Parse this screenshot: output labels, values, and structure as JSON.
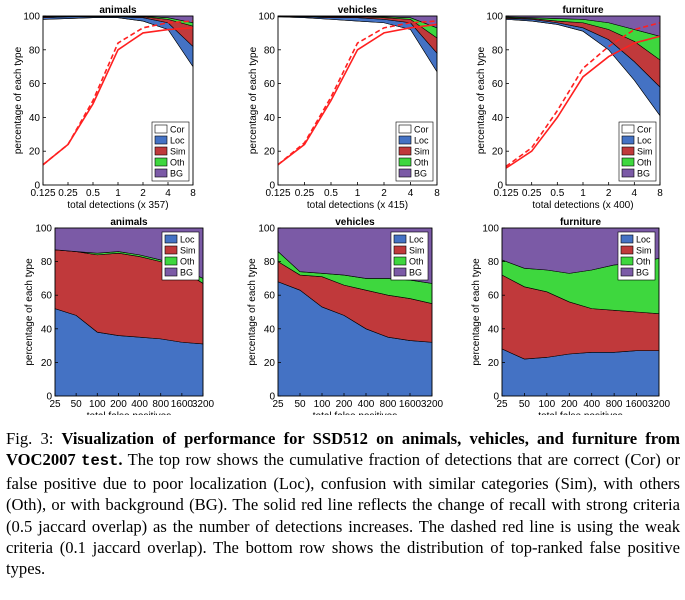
{
  "colors": {
    "cor": "#ffffff",
    "loc": "#4472c4",
    "sim": "#c0393b",
    "oth": "#3ed73e",
    "bg": "#7b5aa6",
    "recall": "#ff2020"
  },
  "legend": {
    "top": [
      "Cor",
      "Loc",
      "Sim",
      "Oth",
      "BG"
    ],
    "bottom": [
      "Loc",
      "Sim",
      "Oth",
      "BG"
    ]
  },
  "chart_data": [
    {
      "type": "area",
      "title": "animals",
      "ylabel": "percentage of each type",
      "xlabel": "total detections (x 357)",
      "x": [
        0.125,
        0.25,
        0.5,
        1,
        2,
        4,
        8
      ],
      "xticks": [
        "0.125",
        "0.25",
        "0.5",
        "1",
        "2",
        "4",
        "8"
      ],
      "yticks": [
        "0",
        "20",
        "40",
        "60",
        "80",
        "100"
      ],
      "ylim": [
        0,
        100
      ],
      "series": [
        {
          "name": "Cor",
          "cumulative": [
            98,
            98.5,
            99,
            99,
            97,
            92,
            70
          ]
        },
        {
          "name": "Loc",
          "cumulative": [
            99,
            99.5,
            99.5,
            99.5,
            99,
            96,
            82
          ]
        },
        {
          "name": "Sim",
          "cumulative": [
            99.5,
            99.8,
            99.8,
            99.8,
            99.5,
            98,
            94
          ]
        },
        {
          "name": "Oth",
          "cumulative": [
            99.8,
            99.9,
            99.9,
            99.9,
            99.8,
            99,
            96
          ]
        },
        {
          "name": "BG",
          "cumulative": [
            100,
            100,
            100,
            100,
            100,
            100,
            100
          ]
        }
      ],
      "recall_strong": [
        12,
        24,
        48,
        80,
        90,
        92,
        93
      ],
      "recall_weak": [
        12,
        24,
        50,
        84,
        93,
        96,
        97
      ]
    },
    {
      "type": "area",
      "title": "vehicles",
      "ylabel": "percentage of each type",
      "xlabel": "total detections (x 415)",
      "x": [
        0.125,
        0.25,
        0.5,
        1,
        2,
        4,
        8
      ],
      "xticks": [
        "0.125",
        "0.25",
        "0.5",
        "1",
        "2",
        "4",
        "8"
      ],
      "yticks": [
        "0",
        "20",
        "40",
        "60",
        "80",
        "100"
      ],
      "ylim": [
        0,
        100
      ],
      "series": [
        {
          "name": "Cor",
          "cumulative": [
            99.5,
            99,
            98,
            97,
            96,
            92,
            67
          ]
        },
        {
          "name": "Loc",
          "cumulative": [
            99.8,
            99.5,
            99,
            99,
            98,
            96,
            78
          ]
        },
        {
          "name": "Sim",
          "cumulative": [
            99.9,
            99.8,
            99.5,
            99.5,
            99,
            98,
            87
          ]
        },
        {
          "name": "Oth",
          "cumulative": [
            100,
            99.9,
            99.8,
            99.8,
            99.5,
            99,
            93
          ]
        },
        {
          "name": "BG",
          "cumulative": [
            100,
            100,
            100,
            100,
            100,
            100,
            100
          ]
        }
      ],
      "recall_strong": [
        12,
        24,
        50,
        80,
        90,
        93,
        95
      ],
      "recall_weak": [
        12,
        25,
        52,
        84,
        93,
        96,
        97
      ]
    },
    {
      "type": "area",
      "title": "furniture",
      "ylabel": "percentage of each type",
      "xlabel": "total detections (x 400)",
      "x": [
        0.125,
        0.25,
        0.5,
        1,
        2,
        4,
        8
      ],
      "xticks": [
        "0.125",
        "0.25",
        "0.5",
        "1",
        "2",
        "4",
        "8"
      ],
      "yticks": [
        "0",
        "20",
        "40",
        "60",
        "80",
        "100"
      ],
      "ylim": [
        0,
        100
      ],
      "series": [
        {
          "name": "Cor",
          "cumulative": [
            98,
            97,
            95,
            91,
            80,
            62,
            41
          ]
        },
        {
          "name": "Loc",
          "cumulative": [
            98.5,
            98,
            96,
            93,
            86,
            73,
            58
          ]
        },
        {
          "name": "Sim",
          "cumulative": [
            99,
            98.5,
            97,
            96,
            92,
            85,
            74
          ]
        },
        {
          "name": "Oth",
          "cumulative": [
            99.5,
            99,
            98.5,
            98,
            96,
            92,
            88
          ]
        },
        {
          "name": "BG",
          "cumulative": [
            100,
            100,
            100,
            100,
            100,
            100,
            100
          ]
        }
      ],
      "recall_strong": [
        10,
        20,
        40,
        64,
        76,
        84,
        88
      ],
      "recall_weak": [
        11,
        22,
        44,
        69,
        82,
        92,
        96
      ]
    },
    {
      "type": "area",
      "title": "animals",
      "ylabel": "percentage of each type",
      "xlabel": "total false positives",
      "x": [
        25,
        50,
        100,
        200,
        400,
        800,
        1600,
        3200
      ],
      "xticks": [
        "25",
        "50",
        "100",
        "200",
        "400",
        "800",
        "1600",
        "3200"
      ],
      "yticks": [
        "0",
        "20",
        "40",
        "60",
        "80",
        "100"
      ],
      "ylim": [
        0,
        100
      ],
      "series": [
        {
          "name": "Loc",
          "cumulative": [
            52,
            48,
            38,
            36,
            35,
            34,
            32,
            31
          ]
        },
        {
          "name": "Sim",
          "cumulative": [
            87,
            86,
            84,
            85,
            83,
            80,
            75,
            67
          ]
        },
        {
          "name": "Oth",
          "cumulative": [
            87,
            86,
            85,
            86,
            84,
            81,
            76,
            70
          ]
        },
        {
          "name": "BG",
          "cumulative": [
            100,
            100,
            100,
            100,
            100,
            100,
            100,
            100
          ]
        }
      ]
    },
    {
      "type": "area",
      "title": "vehicles",
      "ylabel": "percentage of each type",
      "xlabel": "total false positives",
      "x": [
        25,
        50,
        100,
        200,
        400,
        800,
        1600,
        3200
      ],
      "xticks": [
        "25",
        "50",
        "100",
        "200",
        "400",
        "800",
        "1600",
        "3200"
      ],
      "yticks": [
        "0",
        "20",
        "40",
        "60",
        "80",
        "100"
      ],
      "ylim": [
        0,
        100
      ],
      "series": [
        {
          "name": "Loc",
          "cumulative": [
            68,
            63,
            53,
            48,
            40,
            35,
            33,
            32
          ]
        },
        {
          "name": "Sim",
          "cumulative": [
            80,
            72,
            71,
            66,
            63,
            60,
            58,
            55
          ]
        },
        {
          "name": "Oth",
          "cumulative": [
            86,
            74,
            73,
            72,
            70,
            70,
            69,
            67
          ]
        },
        {
          "name": "BG",
          "cumulative": [
            100,
            100,
            100,
            100,
            100,
            100,
            100,
            100
          ]
        }
      ]
    },
    {
      "type": "area",
      "title": "furniture",
      "ylabel": "percentage of each type",
      "xlabel": "total false positives",
      "x": [
        25,
        50,
        100,
        200,
        400,
        800,
        1600,
        3200
      ],
      "xticks": [
        "25",
        "50",
        "100",
        "200",
        "400",
        "800",
        "1600",
        "3200"
      ],
      "yticks": [
        "0",
        "20",
        "40",
        "60",
        "80",
        "100"
      ],
      "ylim": [
        0,
        100
      ],
      "series": [
        {
          "name": "Loc",
          "cumulative": [
            28,
            22,
            23,
            25,
            26,
            26,
            27,
            27
          ]
        },
        {
          "name": "Sim",
          "cumulative": [
            72,
            65,
            62,
            56,
            52,
            51,
            50,
            49
          ]
        },
        {
          "name": "Oth",
          "cumulative": [
            81,
            76,
            75,
            73,
            75,
            78,
            79,
            82
          ]
        },
        {
          "name": "BG",
          "cumulative": [
            100,
            100,
            100,
            100,
            100,
            100,
            100,
            100
          ]
        }
      ]
    }
  ],
  "caption": {
    "label": "Fig. 3:",
    "title": "Visualization of performance for SSD512 on animals, vehicles, and furniture from VOC2007",
    "code": "test",
    "title_end": ".",
    "body": "The top row shows the cumulative fraction of detections that are correct (Cor) or false positive due to poor localization (Loc), confusion with similar categories (Sim), with others (Oth), or with background (BG). The solid red line reflects the change of recall with strong criteria (0.5 jaccard overlap) as the number of detections increases. The dashed red line is using the weak criteria (0.1 jaccard overlap). The bottom row shows the distribution of top-ranked false positive types."
  }
}
